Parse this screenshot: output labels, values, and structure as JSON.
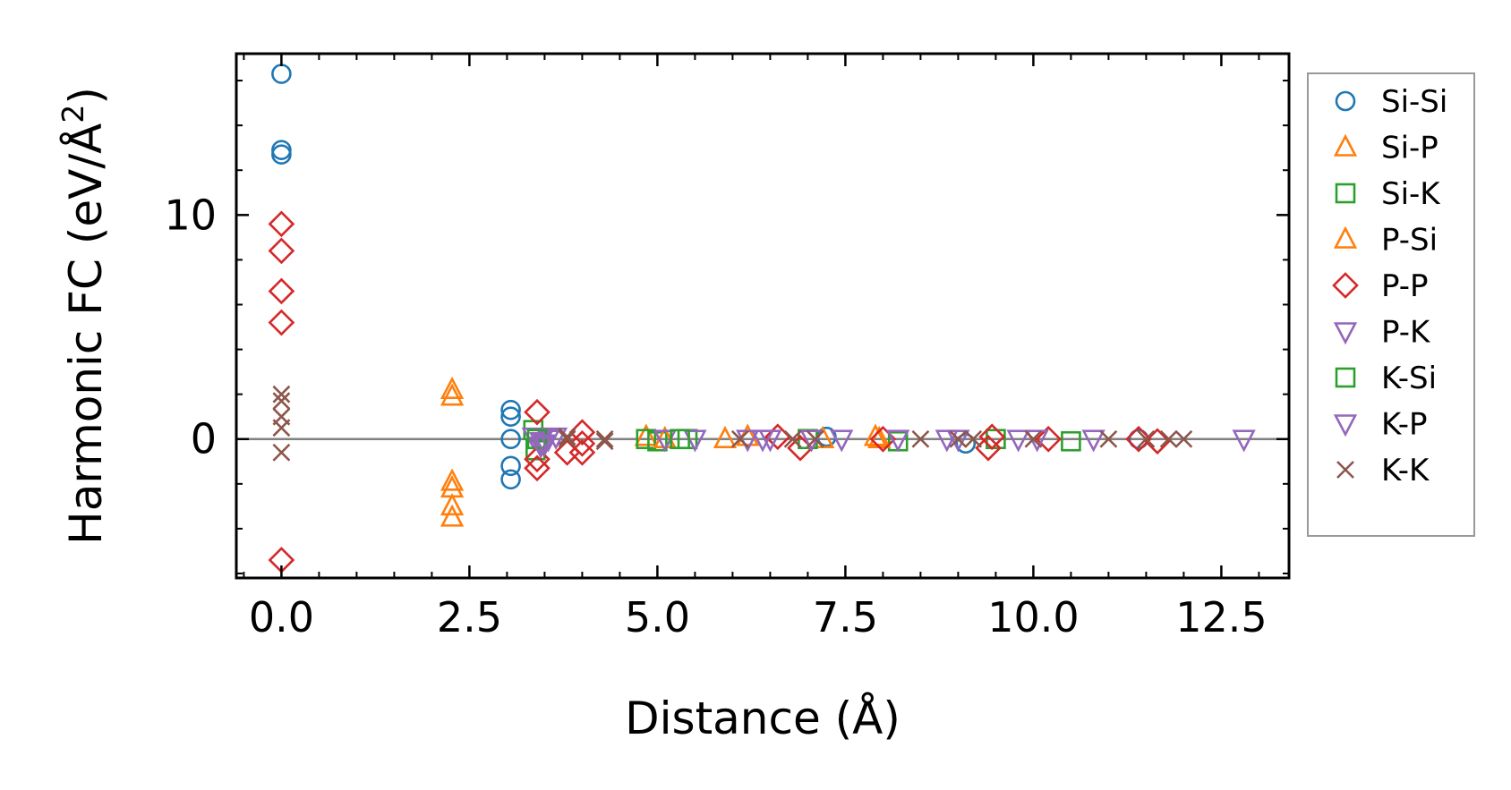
{
  "chart_data": {
    "type": "scatter",
    "xlabel": "Distance (Å)",
    "ylabel_main": "Harmonic FC (eV/Å",
    "ylabel_sup": "2",
    "ylabel_end": ")",
    "xlim": [
      -0.6,
      13.4
    ],
    "ylim": [
      -6.2,
      17.2
    ],
    "xticks": [
      0.0,
      2.5,
      5.0,
      7.5,
      10.0,
      12.5
    ],
    "xtick_labels": [
      "0.0",
      "2.5",
      "5.0",
      "7.5",
      "10.0",
      "12.5"
    ],
    "yticks": [
      0,
      10
    ],
    "ytick_labels": [
      "0",
      "10"
    ],
    "x_minor_step": 0.5,
    "y_minor_step": 2,
    "zero_line": true,
    "legend_position": "outside-right",
    "series": [
      {
        "name": "Si-Si",
        "marker": "circle",
        "color": "#1f77b4",
        "x": [
          0,
          0,
          0,
          3.05,
          3.05,
          3.05,
          3.05,
          3.05,
          7.25,
          9.1,
          11.4
        ],
        "y": [
          16.3,
          12.9,
          12.7,
          1.3,
          1.0,
          -1.2,
          -1.8,
          0.0,
          0.1,
          -0.2,
          0.0
        ]
      },
      {
        "name": "Si-P",
        "marker": "triangle-up",
        "color": "#ff7f0e",
        "x": [
          2.27,
          2.27,
          2.27,
          2.27,
          2.27,
          2.27,
          4.85,
          5.9,
          7.2,
          7.9
        ],
        "y": [
          2.2,
          1.9,
          -1.9,
          -2.2,
          -3.0,
          -3.5,
          0.1,
          0.0,
          0.0,
          0.1
        ]
      },
      {
        "name": "Si-K",
        "marker": "square",
        "color": "#2ca02c",
        "x": [
          3.35,
          3.38,
          4.85,
          5.0,
          5.4,
          7.0,
          8.2,
          9.5,
          10.5
        ],
        "y": [
          0.4,
          -0.5,
          0.0,
          -0.1,
          0.0,
          0.0,
          -0.1,
          0.0,
          -0.1
        ]
      },
      {
        "name": "P-Si",
        "marker": "triangle-up",
        "color": "#ff7f0e",
        "x": [
          5.1,
          6.2,
          7.95
        ],
        "y": [
          0.0,
          0.1,
          0.0
        ]
      },
      {
        "name": "P-P",
        "marker": "diamond",
        "color": "#d62728",
        "x": [
          0,
          0,
          0,
          0,
          0,
          3.4,
          3.4,
          3.4,
          3.8,
          4.0,
          4.0,
          4.0,
          6.6,
          6.9,
          8.0,
          9.4,
          9.45,
          10.2,
          11.4,
          11.65
        ],
        "y": [
          9.6,
          8.4,
          6.6,
          5.2,
          -5.4,
          1.2,
          -0.9,
          -1.3,
          -0.6,
          0.3,
          -0.2,
          -0.6,
          0.1,
          -0.4,
          0.0,
          -0.4,
          0.1,
          0.0,
          0.0,
          -0.1
        ],
        "label_note": "P-P"
      },
      {
        "name": "P-K",
        "marker": "triangle-down",
        "color": "#9467bd",
        "x": [
          3.35,
          3.45,
          3.55,
          3.65,
          5.1,
          5.5,
          6.2,
          6.4,
          7.05,
          8.85,
          9.8,
          10.05,
          10.8,
          12.8
        ],
        "y": [
          0.1,
          -0.1,
          0.0,
          0.1,
          0.0,
          0.0,
          0.0,
          0.0,
          0.0,
          0.0,
          0.0,
          0.0,
          0.0,
          0.0
        ]
      },
      {
        "name": "K-Si",
        "marker": "square",
        "color": "#2ca02c",
        "x": [
          3.4,
          5.3
        ],
        "y": [
          0.0,
          0.0
        ]
      },
      {
        "name": "K-P",
        "marker": "triangle-down",
        "color": "#9467bd",
        "x": [
          3.45,
          3.5,
          6.5,
          7.45,
          8.2,
          9.0
        ],
        "y": [
          -0.3,
          -0.2,
          0.0,
          0.0,
          0.0,
          0.0
        ]
      },
      {
        "name": "K-K",
        "marker": "x",
        "color": "#8c564b",
        "x": [
          0,
          0,
          0,
          0,
          0,
          3.8,
          3.8,
          4.3,
          4.3,
          6.1,
          6.8,
          7.1,
          8.5,
          9.0,
          9.2,
          10.0,
          11.0,
          11.5,
          11.8,
          12.0
        ],
        "y": [
          2.0,
          1.7,
          1.0,
          0.5,
          -0.6,
          0.0,
          0.1,
          0.0,
          -0.1,
          0.0,
          0.0,
          0.0,
          0.0,
          0.0,
          0.0,
          0.0,
          0.0,
          0.0,
          0.0,
          0.0
        ]
      }
    ]
  }
}
